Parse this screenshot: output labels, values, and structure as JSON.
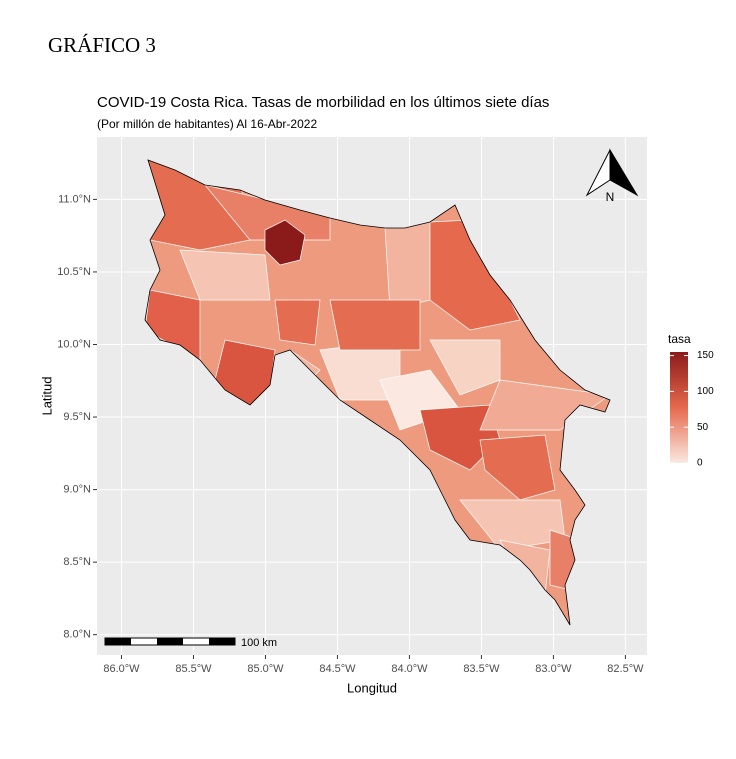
{
  "heading": "GRÁFICO  3",
  "chart_data": {
    "type": "map",
    "title": "COVID-19 Costa Rica. Tasas de morbilidad en los últimos siete días",
    "subtitle": "(Por millón de habitantes) Al 16-Abr-2022",
    "xlabel": "Longitud",
    "ylabel": "Latitud",
    "xlim": [
      -86.17,
      -82.35
    ],
    "ylim": [
      7.86,
      11.43
    ],
    "xticks": [
      {
        "value": -86,
        "label": "86.0°W"
      },
      {
        "value": -85.5,
        "label": "85.5°W"
      },
      {
        "value": -85,
        "label": "85.0°W"
      },
      {
        "value": -84.5,
        "label": "84.5°W"
      },
      {
        "value": -84,
        "label": "84.0°W"
      },
      {
        "value": -83.5,
        "label": "83.5°W"
      },
      {
        "value": -83,
        "label": "83.0°W"
      },
      {
        "value": -82.5,
        "label": "82.5°W"
      }
    ],
    "yticks": [
      {
        "value": 8,
        "label": "8.0°N"
      },
      {
        "value": 8.5,
        "label": "8.5°N"
      },
      {
        "value": 9,
        "label": "9.0°N"
      },
      {
        "value": 9.5,
        "label": "9.5°N"
      },
      {
        "value": 10,
        "label": "10.0°N"
      },
      {
        "value": 10.5,
        "label": "10.5°N"
      },
      {
        "value": 11,
        "label": "11.0°N"
      }
    ],
    "grid": true,
    "legend": {
      "title": "tasa",
      "lim": [
        0,
        155
      ],
      "ticks": [
        0,
        50,
        100,
        150
      ],
      "colors": [
        "#fbe9e1",
        "#e5694d",
        "#8b1a1a"
      ]
    },
    "scale_bar": "100 km",
    "north": "N"
  }
}
